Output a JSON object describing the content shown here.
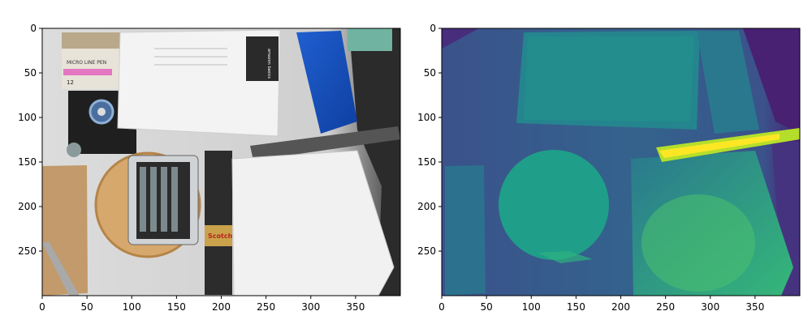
{
  "figure": {
    "panels": [
      {
        "id": "rgb",
        "content": "photo",
        "x_ticks": [
          "0",
          "50",
          "100",
          "150",
          "200",
          "250",
          "300",
          "350"
        ],
        "y_ticks": [
          "0",
          "50",
          "100",
          "150",
          "200",
          "250"
        ],
        "x_range": [
          0,
          400
        ],
        "y_range": [
          0,
          300
        ],
        "visible_text": {
          "pen_box": "MICRO LINE PEN",
          "pen_count": "12",
          "envelope_brand": "amazon basics",
          "tape": "Scotch"
        }
      },
      {
        "id": "depth",
        "content": "depth-map",
        "colormap": "viridis",
        "x_ticks": [
          "0",
          "50",
          "100",
          "150",
          "200",
          "250",
          "300",
          "350"
        ],
        "y_ticks": [
          "0",
          "50",
          "100",
          "150",
          "200",
          "250"
        ],
        "x_range": [
          0,
          400
        ],
        "y_range": [
          0,
          300
        ]
      }
    ]
  },
  "colors": {
    "viridis_dark": "#440154",
    "viridis_blue": "#3b528b",
    "viridis_teal": "#21918c",
    "viridis_green": "#5ec962",
    "viridis_yellow": "#fde725"
  }
}
